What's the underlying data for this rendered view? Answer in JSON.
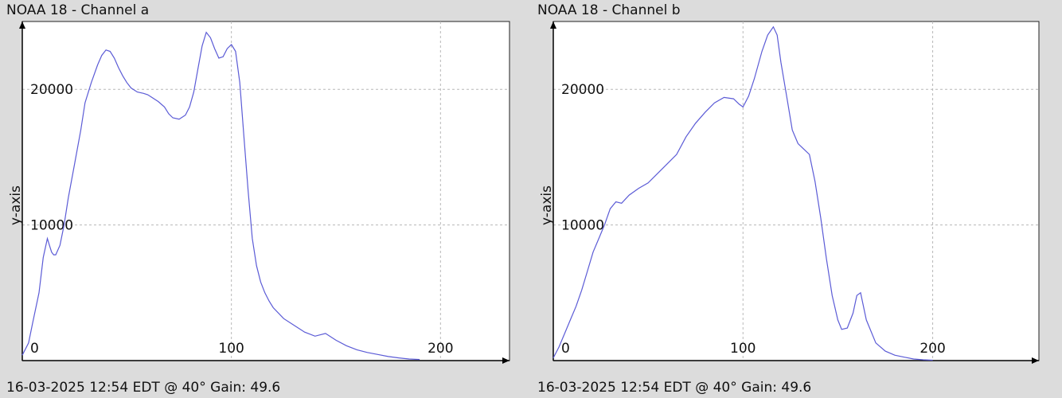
{
  "chart_data": [
    {
      "type": "line",
      "title": "NOAA 18 - Channel a",
      "footer": "16-03-2025 12:54 EDT @ 40° Gain: 49.6",
      "ylabel": "y-axis",
      "xlabel": "",
      "xlim": [
        0,
        233
      ],
      "ylim": [
        0,
        25000
      ],
      "xticks": [
        0,
        100,
        200
      ],
      "yticks": [
        10000,
        20000
      ],
      "grid": true,
      "line_color": "#5b5bd6",
      "series": [
        {
          "x": [
            0,
            3,
            5,
            8,
            10,
            12,
            13,
            14,
            15,
            16,
            18,
            20,
            22,
            25,
            28,
            30,
            33,
            36,
            38,
            40,
            42,
            44,
            46,
            48,
            50,
            52,
            55,
            58,
            60,
            62,
            65,
            68,
            70,
            72,
            75,
            78,
            80,
            82,
            84,
            86,
            88,
            90,
            92,
            94,
            96,
            98,
            100,
            102,
            104,
            106,
            108,
            110,
            112,
            114,
            116,
            118,
            120,
            125,
            130,
            135,
            140,
            145,
            150,
            155,
            160,
            165,
            170,
            175,
            180,
            185,
            190
          ],
          "y": [
            400,
            1300,
            2800,
            5000,
            7600,
            9000,
            8500,
            8000,
            7800,
            7800,
            8500,
            10000,
            12000,
            14500,
            17000,
            19000,
            20500,
            21800,
            22500,
            22900,
            22800,
            22300,
            21600,
            21000,
            20500,
            20100,
            19800,
            19700,
            19600,
            19400,
            19100,
            18700,
            18200,
            17900,
            17800,
            18100,
            18700,
            19800,
            21500,
            23200,
            24200,
            23800,
            23000,
            22300,
            22400,
            23000,
            23300,
            22800,
            20500,
            16500,
            12500,
            9000,
            7000,
            5800,
            5000,
            4400,
            3900,
            3100,
            2600,
            2100,
            1800,
            2000,
            1500,
            1100,
            800,
            600,
            450,
            300,
            200,
            120,
            80
          ]
        }
      ]
    },
    {
      "type": "line",
      "title": "NOAA 18 - Channel b",
      "footer": "16-03-2025 12:54 EDT @ 40° Gain: 49.6",
      "ylabel": "y-axis",
      "xlabel": "",
      "xlim": [
        0,
        256
      ],
      "ylim": [
        0,
        25000
      ],
      "xticks": [
        0,
        100,
        200
      ],
      "yticks": [
        10000,
        20000
      ],
      "grid": true,
      "line_color": "#5b5bd6",
      "series": [
        {
          "x": [
            0,
            3,
            6,
            9,
            12,
            15,
            18,
            21,
            24,
            27,
            30,
            33,
            36,
            40,
            45,
            50,
            55,
            60,
            65,
            70,
            75,
            80,
            85,
            90,
            95,
            98,
            100,
            103,
            106,
            110,
            113,
            116,
            118,
            120,
            123,
            126,
            129,
            132,
            135,
            138,
            141,
            144,
            147,
            150,
            152,
            155,
            158,
            160,
            162,
            165,
            170,
            175,
            180,
            185,
            190,
            195,
            200
          ],
          "y": [
            200,
            1000,
            2000,
            3000,
            4000,
            5200,
            6600,
            8000,
            9000,
            10000,
            11200,
            11700,
            11600,
            12200,
            12700,
            13100,
            13800,
            14500,
            15200,
            16500,
            17500,
            18300,
            19000,
            19400,
            19300,
            18900,
            18700,
            19500,
            20800,
            22800,
            24000,
            24600,
            24000,
            22000,
            19500,
            17000,
            16000,
            15600,
            15200,
            13200,
            10500,
            7500,
            4800,
            3000,
            2300,
            2400,
            3500,
            4800,
            5000,
            3000,
            1300,
            700,
            400,
            250,
            120,
            60,
            30
          ]
        }
      ]
    }
  ]
}
